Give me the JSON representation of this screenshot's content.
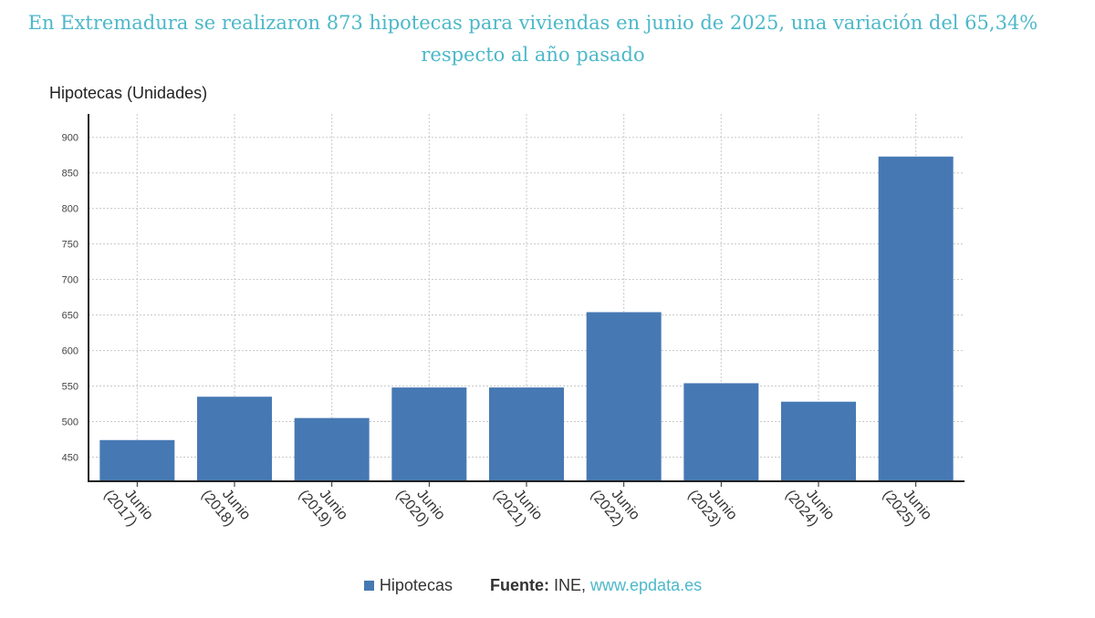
{
  "title_line1": "En Extremadura se realizaron 873 hipotecas para viviendas en junio de 2025, una variación del 65,34%",
  "title_line2": "respecto al año pasado",
  "legend": {
    "series_name": "Hipotecas",
    "source_label": "Fuente:",
    "source_value": "INE,",
    "source_link": "www.epdata.es"
  },
  "colors": {
    "bar": "#4679b3",
    "title": "#4cb8c9",
    "grid": "#c8c8c8"
  },
  "chart_data": {
    "type": "bar",
    "ylabel": "Hipotecas (Unidades)",
    "categories": [
      [
        "Junio",
        "(2017)"
      ],
      [
        "Junio",
        "(2018)"
      ],
      [
        "Junio",
        "(2019)"
      ],
      [
        "Junio",
        "(2020)"
      ],
      [
        "Junio",
        "(2021)"
      ],
      [
        "Junio",
        "(2022)"
      ],
      [
        "Junio",
        "(2023)"
      ],
      [
        "Junio",
        "(2024)"
      ],
      [
        "Junio",
        "(2025)"
      ]
    ],
    "series": [
      {
        "name": "Hipotecas",
        "values": [
          474,
          535,
          505,
          548,
          548,
          654,
          554,
          528,
          873
        ]
      }
    ],
    "ylim": [
      416,
      933
    ],
    "yticks": [
      450,
      500,
      550,
      600,
      650,
      700,
      750,
      800,
      850,
      900
    ],
    "grid": true
  }
}
